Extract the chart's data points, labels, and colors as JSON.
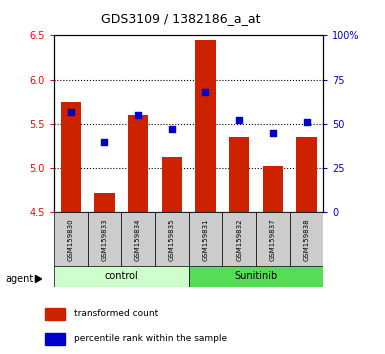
{
  "title": "GDS3109 / 1382186_a_at",
  "samples": [
    "GSM159830",
    "GSM159833",
    "GSM159834",
    "GSM159835",
    "GSM159831",
    "GSM159832",
    "GSM159837",
    "GSM159838"
  ],
  "bar_values": [
    5.75,
    4.72,
    5.6,
    5.13,
    6.45,
    5.35,
    5.02,
    5.35
  ],
  "dot_values": [
    57,
    40,
    55,
    47,
    68,
    52,
    45,
    51
  ],
  "bar_color": "#cc2200",
  "dot_color": "#0000cc",
  "bar_bottom": 4.5,
  "ylim_left": [
    4.5,
    6.5
  ],
  "ylim_right": [
    0,
    100
  ],
  "yticks_left": [
    4.5,
    5.0,
    5.5,
    6.0,
    6.5
  ],
  "yticks_right": [
    0,
    25,
    50,
    75,
    100
  ],
  "ytick_labels_right": [
    "0",
    "25",
    "50",
    "75",
    "100%"
  ],
  "groups": [
    {
      "label": "control",
      "indices": [
        0,
        1,
        2,
        3
      ],
      "color": "#ccffcc"
    },
    {
      "label": "Sunitinib",
      "indices": [
        4,
        5,
        6,
        7
      ],
      "color": "#55dd55"
    }
  ],
  "group_row_label": "agent",
  "legend_bar_label": "transformed count",
  "legend_dot_label": "percentile rank within the sample",
  "background_color": "#ffffff",
  "plot_bg": "#ffffff",
  "label_bg": "#cccccc",
  "title_fontsize": 9,
  "tick_fontsize": 7,
  "sample_fontsize": 5,
  "group_fontsize": 7,
  "legend_fontsize": 6.5
}
